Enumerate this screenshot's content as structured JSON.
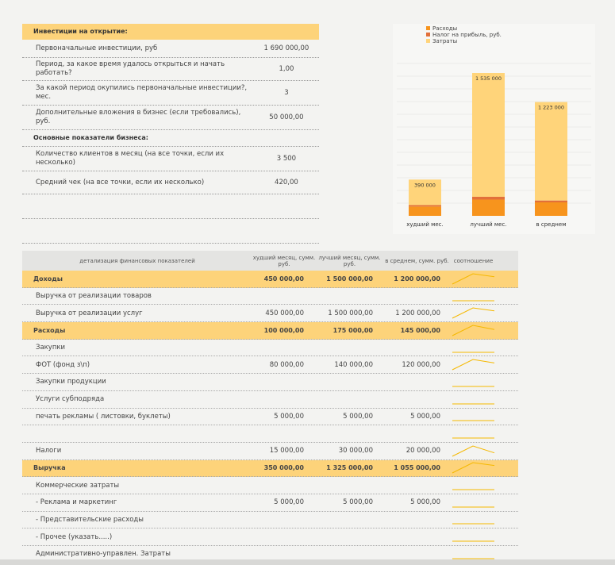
{
  "invest": {
    "title": "Инвестиции на открытие:",
    "rows": [
      {
        "label": "Первоначальные инвестиции, руб",
        "value": "1 690 000,00"
      },
      {
        "label": "Период, за какое время удалось открыться и начать работать?",
        "value": "1,00"
      },
      {
        "label": "За какой период окупились первоначальные инвестиции?, мес.",
        "value": "3"
      },
      {
        "label": "Дополнительные вложения в бизнес (если требовались), руб.",
        "value": "50 000,00"
      }
    ]
  },
  "business": {
    "title": "Основные показатели бизнеса:",
    "rows": [
      {
        "label": "Количество клиентов в месяц (на все точки, если их несколько)",
        "value": "3 500"
      },
      {
        "label": "Средний чек (на все точки, если их несколько)",
        "value": "420,00"
      }
    ]
  },
  "chart_data": {
    "type": "bar",
    "categories": [
      "худший мес.",
      "лучший мес.",
      "в среднем"
    ],
    "series": [
      {
        "name": "Расходы",
        "color": "#f7941d",
        "values": [
          100000,
          175000,
          145000
        ]
      },
      {
        "name": "Налог на прибыль, руб.",
        "color": "#e2703a",
        "values": [
          15000,
          30000,
          20000
        ]
      },
      {
        "name": "Затраты",
        "color": "#ffd47a",
        "values": [
          275000,
          1330000,
          1058000
        ]
      }
    ],
    "total_labels": [
      "390 000",
      "1 535 000",
      "1 223 000"
    ]
  },
  "table": {
    "header": [
      "детализация финансовых показателей",
      "худший месяц, сумм. руб.",
      "лучший месяц, сумм. руб.",
      "в среднем, сумм. руб.",
      "соотношение"
    ],
    "rows": [
      {
        "label": "Доходы",
        "highlight": true,
        "cells": [
          "450 000,00",
          "1 500 000,00",
          "1 200 000,00"
        ],
        "values": [
          450000,
          1500000,
          1200000
        ]
      },
      {
        "label": "Выручка от реализации товаров"
      },
      {
        "label": "Выручка от реализации услуг",
        "cells": [
          "450 000,00",
          "1 500 000,00",
          "1 200 000,00"
        ],
        "values": [
          450000,
          1500000,
          1200000
        ]
      },
      {
        "label": "Расходы",
        "highlight": true,
        "cells": [
          "100 000,00",
          "175 000,00",
          "145 000,00"
        ],
        "values": [
          100000,
          175000,
          145000
        ]
      },
      {
        "label": "Закупки"
      },
      {
        "label": "ФОТ (фонд з\\п)",
        "cells": [
          "80 000,00",
          "140 000,00",
          "120 000,00"
        ],
        "values": [
          80000,
          140000,
          120000
        ]
      },
      {
        "label": "Закупки продукции"
      },
      {
        "label": "Услуги субподряда"
      },
      {
        "label": "печать рекламы ( листовки, буклеты)",
        "cells": [
          "5 000,00",
          "5 000,00",
          "5 000,00"
        ],
        "values": [
          5000,
          5000,
          5000
        ]
      },
      {},
      {
        "label": "Налоги",
        "cells": [
          "15 000,00",
          "30 000,00",
          "20 000,00"
        ],
        "values": [
          15000,
          30000,
          20000
        ]
      },
      {
        "label": "Выручка",
        "highlight": true,
        "cells": [
          "350 000,00",
          "1 325 000,00",
          "1 055 000,00"
        ],
        "values": [
          350000,
          1325000,
          1055000
        ]
      },
      {
        "label": "Коммерческие затраты"
      },
      {
        "label": "- Реклама и маркетинг",
        "cells": [
          "5 000,00",
          "5 000,00",
          "5 000,00"
        ],
        "values": [
          5000,
          5000,
          5000
        ]
      },
      {
        "label": "- Представительские расходы"
      },
      {
        "label": "- Прочее (указать.....)"
      },
      {
        "label": "Административно-управлен. Затраты"
      }
    ]
  }
}
